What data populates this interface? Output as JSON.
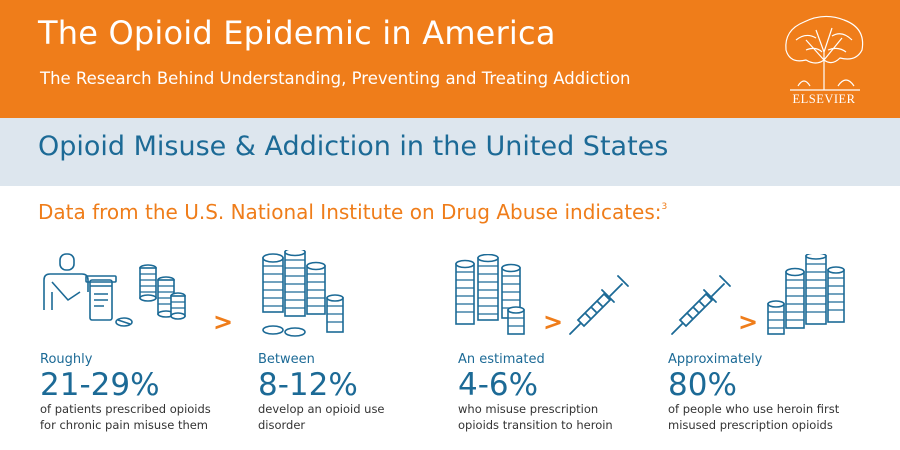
{
  "header": {
    "title": "The Opioid Epidemic in America",
    "subtitle": "The Research Behind Understanding, Preventing and Treating Addiction",
    "logo_text": "ELSEVIER"
  },
  "section": {
    "title": "Opioid Misuse & Addiction in the United States"
  },
  "intro": {
    "text": "Data from the U.S. National Institute on Drug Abuse indicates:",
    "footnote": "3"
  },
  "chevron": ">",
  "stats": [
    {
      "lead": "Roughly",
      "value": "21-29%",
      "desc_line1": "of patients prescribed opioids",
      "desc_line2": "for chronic pain misuse them"
    },
    {
      "lead": "Between",
      "value": "8-12%",
      "desc_line1": "develop an opioid use",
      "desc_line2": "disorder"
    },
    {
      "lead": "An estimated",
      "value": "4-6%",
      "desc_line1": "who misuse prescription",
      "desc_line2": "opioids transition to heroin"
    },
    {
      "lead": "Approximately",
      "value": "80%",
      "desc_line1": "of people who use heroin first",
      "desc_line2": "misused prescription opioids"
    }
  ],
  "icons": {
    "patient": "patient-with-pills-icon",
    "pills": "pill-stacks-icon",
    "syringe": "syringe-icon"
  },
  "colors": {
    "orange": "#ef7d1a",
    "blue": "#1c6a96",
    "band": "#dde6ee"
  }
}
